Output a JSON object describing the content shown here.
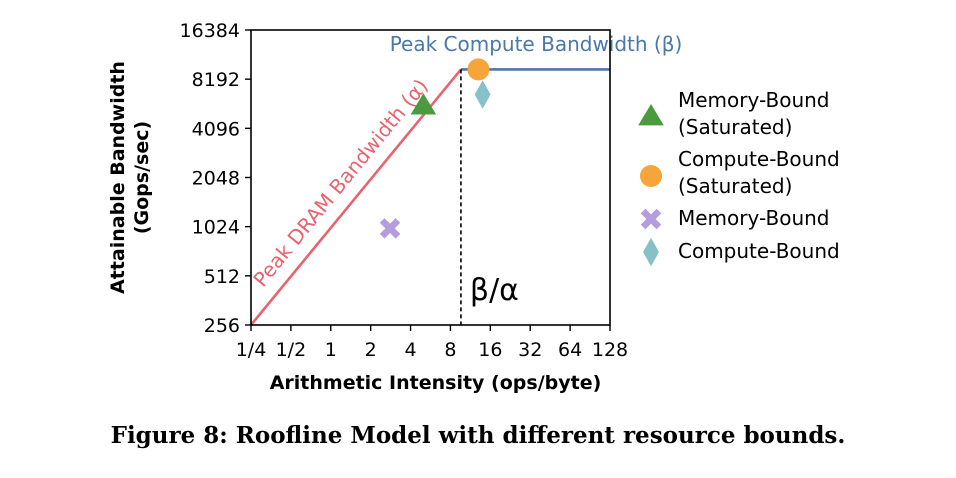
{
  "figure_caption": "Figure 8: Roofline Model with different resource bounds.",
  "chart_data": {
    "type": "line",
    "xlabel": "Arithmetic Intensity (ops/byte)",
    "ylabel_lines": [
      "Attainable Bandwidth",
      "(Gops/sec)"
    ],
    "x_scale": "log2",
    "y_scale": "log2",
    "xlim": [
      0.25,
      128
    ],
    "ylim": [
      256,
      16384
    ],
    "x_ticks": [
      0.25,
      0.5,
      1,
      2,
      4,
      8,
      16,
      32,
      64,
      128
    ],
    "x_tick_labels": [
      "1/4",
      "1/2",
      "1",
      "2",
      "4",
      "8",
      "16",
      "32",
      "64",
      "128"
    ],
    "y_ticks": [
      256,
      512,
      1024,
      2048,
      4096,
      8192,
      16384
    ],
    "y_tick_labels": [
      "256",
      "512",
      "1024",
      "2048",
      "4096",
      "8192",
      "16384"
    ],
    "grid": false,
    "series": [
      {
        "name": "Peak DRAM Bandwidth (α)",
        "kind": "line",
        "color": "#e8636f",
        "x": [
          0.25,
          9.6
        ],
        "y": [
          256,
          9400
        ]
      },
      {
        "name": "Peak Compute Bandwidth (β)",
        "kind": "line",
        "color": "#4a78a8",
        "x": [
          9.6,
          128
        ],
        "y": [
          9400,
          9400
        ]
      }
    ],
    "ridge_point": {
      "x": 9.6,
      "label": "β/α"
    },
    "markers": [
      {
        "name": "Memory-Bound\n(Saturated)",
        "shape": "triangle",
        "color": "#4a9a3e",
        "x": 5,
        "y": 5600
      },
      {
        "name": "Compute-Bound\n(Saturated)",
        "shape": "circle",
        "color": "#f7a53a",
        "x": 13,
        "y": 9400
      },
      {
        "name": "Memory-Bound",
        "shape": "x",
        "color": "#b49ddc",
        "x": 2.8,
        "y": 1000
      },
      {
        "name": "Compute-Bound",
        "shape": "diamond",
        "color": "#86c0c9",
        "x": 14,
        "y": 6600
      }
    ],
    "legend": {
      "placement": "right",
      "entries": [
        {
          "shape": "triangle",
          "color": "#4a9a3e",
          "lines": [
            "Memory-Bound",
            "(Saturated)"
          ]
        },
        {
          "shape": "circle",
          "color": "#f7a53a",
          "lines": [
            "Compute-Bound",
            "(Saturated)"
          ]
        },
        {
          "shape": "x",
          "color": "#b49ddc",
          "lines": [
            "Memory-Bound"
          ]
        },
        {
          "shape": "diamond",
          "color": "#86c0c9",
          "lines": [
            "Compute-Bound"
          ]
        }
      ]
    }
  }
}
